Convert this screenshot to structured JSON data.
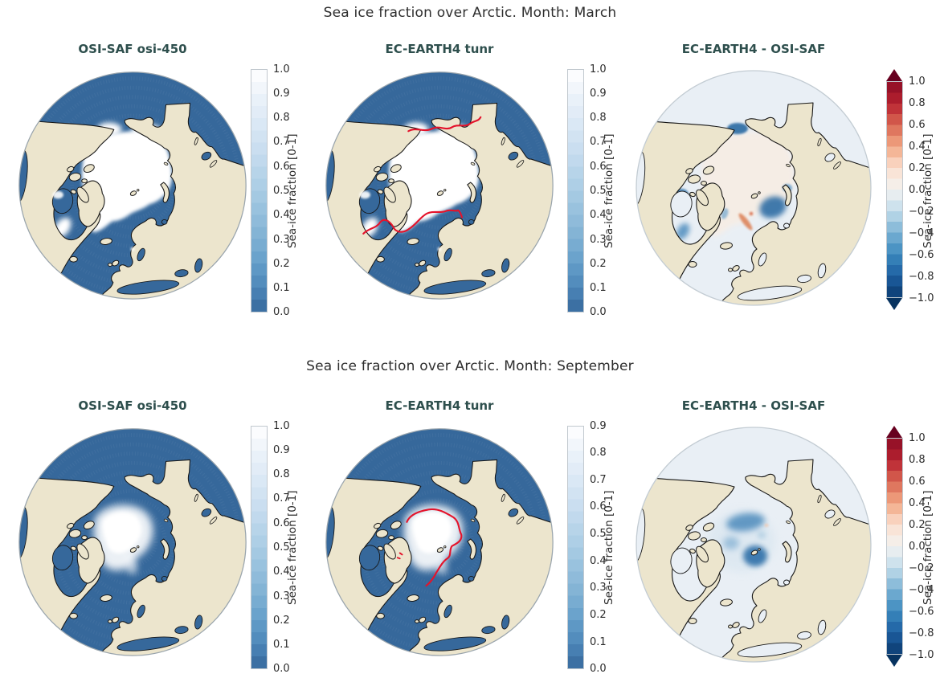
{
  "figure": {
    "rows": [
      {
        "title": "Sea ice fraction over Arctic. Month: March",
        "panels": [
          {
            "title": "OSI-SAF osi-450",
            "map_kind": "obs_march",
            "colorbar": {
              "kind": "blues",
              "label": "Sea-ice fraction [0-1]",
              "ticks": [
                "1.0",
                "0.9",
                "0.8",
                "0.7",
                "0.6",
                "0.5",
                "0.4",
                "0.3",
                "0.2",
                "0.1",
                "0.0"
              ]
            }
          },
          {
            "title": "EC-EARTH4 tunr",
            "map_kind": "model_march",
            "colorbar": {
              "kind": "blues",
              "label": "Sea-ice fraction [0-1]",
              "ticks": [
                "1.0",
                "0.9",
                "0.8",
                "0.7",
                "0.6",
                "0.5",
                "0.4",
                "0.3",
                "0.2",
                "0.1",
                "0.0"
              ]
            }
          },
          {
            "title": "EC-EARTH4 -  OSI-SAF",
            "map_kind": "diff_march",
            "colorbar": {
              "kind": "rdbu",
              "label": "Sea-ice fraction [0-1]",
              "arrows": true,
              "ticks": [
                "1.0",
                "0.8",
                "0.6",
                "0.4",
                "0.2",
                "0.0",
                "−0.2",
                "−0.4",
                "−0.6",
                "−0.8",
                "−1.0"
              ]
            }
          }
        ]
      },
      {
        "title": "Sea ice fraction over Arctic. Month: September",
        "panels": [
          {
            "title": "OSI-SAF osi-450",
            "map_kind": "obs_sep",
            "colorbar": {
              "kind": "blues",
              "label": "Sea-ice fraction [0-1]",
              "ticks": [
                "1.0",
                "0.9",
                "0.8",
                "0.7",
                "0.6",
                "0.5",
                "0.4",
                "0.3",
                "0.2",
                "0.1",
                "0.0"
              ]
            }
          },
          {
            "title": "EC-EARTH4 tunr",
            "map_kind": "model_sep",
            "colorbar": {
              "kind": "blues",
              "label": "Sea-ice fraction [0-1]",
              "ticks": [
                "0.9",
                "0.8",
                "0.7",
                "0.6",
                "0.5",
                "0.4",
                "0.3",
                "0.2",
                "0.1",
                "0.0"
              ]
            }
          },
          {
            "title": "EC-EARTH4 -  OSI-SAF",
            "map_kind": "diff_sep",
            "colorbar": {
              "kind": "rdbu",
              "label": "Sea-ice fraction [0-1]",
              "arrows": true,
              "ticks": [
                "1.0",
                "0.8",
                "0.6",
                "0.4",
                "0.2",
                "0.0",
                "−0.2",
                "−0.4",
                "−0.6",
                "−0.8",
                "−1.0"
              ]
            }
          }
        ]
      }
    ]
  },
  "colors": {
    "ocean": "#36689b",
    "land": "#ece5cd",
    "coast": "#161616",
    "ice": "#ffffff",
    "diff_bg": "#e9eff5",
    "diff_center_pink": "#f6ede5",
    "diff_neg_blue": "#2e6da4",
    "diff_pos_orange": "#de8a64",
    "contour_red": "#e4132b",
    "suptitle_text": "#2e2e2e",
    "panel_title_text": "#2e4f4d",
    "tick_text": "#2b2b2b",
    "rdbu_arrow_top": "#67001f",
    "rdbu_arrow_bottom": "#073360"
  },
  "colormaps": {
    "blues_anchors": [
      "#36689b",
      "#4d87b9",
      "#649ec9",
      "#7fb0d3",
      "#94bedc",
      "#a9cce4",
      "#bcd7eb",
      "#cee0f1",
      "#deeaf6",
      "#edf3fa",
      "#ffffff"
    ],
    "rdbu_anchors": [
      "#0b3b6f",
      "#1d5fa2",
      "#3c8abe",
      "#7bb2d4",
      "#c2dceb",
      "#f3f3f1",
      "#fbdfce",
      "#f2a885",
      "#d96752",
      "#b72230",
      "#8c0c25"
    ]
  },
  "chart_data": [
    {
      "type": "heatmap",
      "panel": "row1-col1",
      "row_title": "Sea ice fraction over Arctic. Month: March",
      "title": "OSI-SAF osi-450",
      "projection": "north-polar orthographic",
      "colormap": "Blues reversed (white=1, dark blue=0)",
      "colorbar_label": "Sea-ice fraction [0-1]",
      "range": [
        0.0,
        1.0
      ],
      "tick_step": 0.1,
      "summary": "Full white ice cap over central Arctic reaching Siberian and Canadian coasts; fringes in Bering Sea, Sea of Okhotsk, Labrador Sea, Barents Sea"
    },
    {
      "type": "heatmap",
      "panel": "row1-col2",
      "row_title": "Sea ice fraction over Arctic. Month: March",
      "title": "EC-EARTH4 tunr",
      "projection": "north-polar orthographic",
      "colormap": "Blues reversed",
      "colorbar_label": "Sea-ice fraction [0-1]",
      "range": [
        0.0,
        1.0
      ],
      "tick_step": 0.1,
      "summary": "Modeled March ice cap similar to observations; red contour marks observed ice edge across Bering Sea and North Atlantic"
    },
    {
      "type": "heatmap",
      "panel": "row1-col3",
      "row_title": "Sea ice fraction over Arctic. Month: March",
      "title": "EC-EARTH4 -  OSI-SAF",
      "projection": "north-polar orthographic",
      "colormap": "RdBu diverging",
      "colorbar_label": "Sea-ice fraction [0-1]",
      "range": [
        -1.0,
        1.0
      ],
      "tick_step": 0.2,
      "extend": "both",
      "summary": "Mostly near zero; negative (blue) patches in Bering Strait, Sea of Okhotsk, Hudson Bay, Labrador and Barents Seas; positive (orange) streak east of Greenland"
    },
    {
      "type": "heatmap",
      "panel": "row2-col1",
      "row_title": "Sea ice fraction over Arctic. Month: September",
      "title": "OSI-SAF osi-450",
      "projection": "north-polar orthographic",
      "colormap": "Blues reversed",
      "colorbar_label": "Sea-ice fraction [0-1]",
      "range": [
        0.0,
        1.0
      ],
      "tick_step": 0.1,
      "summary": "Reduced summer ice cap with diffuse edges confined to central Arctic north of Greenland and Canada"
    },
    {
      "type": "heatmap",
      "panel": "row2-col2",
      "row_title": "Sea ice fraction over Arctic. Month: September",
      "title": "EC-EARTH4 tunr",
      "projection": "north-polar orthographic",
      "colormap": "Blues reversed",
      "colorbar_label": "Sea-ice fraction [0-1]",
      "range": [
        0.0,
        0.9
      ],
      "tick_step": 0.1,
      "summary": "Modeled September ice cap; red contour of observed ice edge encircles the cap"
    },
    {
      "type": "heatmap",
      "panel": "row2-col3",
      "row_title": "Sea ice fraction over Arctic. Month: September",
      "title": "EC-EARTH4 -  OSI-SAF",
      "projection": "north-polar orthographic",
      "colormap": "RdBu diverging",
      "colorbar_label": "Sea-ice fraction [0-1]",
      "range": [
        -1.0,
        1.0
      ],
      "tick_step": 0.2,
      "extend": "both",
      "summary": "Negative (blue) differences across central Arctic toward Svalbard side; elsewhere near zero"
    }
  ]
}
